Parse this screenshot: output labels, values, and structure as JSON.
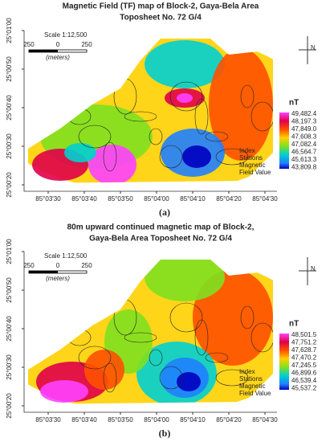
{
  "panels": [
    {
      "title_lines": [
        "Magnetic Field (TF) map of Block-2, Gaya-Bela Area",
        "Toposheet No. 72 G/4"
      ],
      "scale": "Scale 1:12,500",
      "scale_ticks": [
        "250",
        "0",
        "250"
      ],
      "scale_unit": "(meters)",
      "north": "N",
      "y_labels": [
        "25°01'00",
        "25°00'50",
        "25°00'40",
        "25°00'30",
        "25°00'20"
      ],
      "x_labels": [
        "85°03'30",
        "85°03'40",
        "85°03'50",
        "85°04'00",
        "85°04'10",
        "85°04'20",
        "85°04'30"
      ],
      "legend_unit": "nT",
      "legend_values": [
        "49,482.4",
        "48,197.3",
        "47,849.0",
        "47,608.3",
        "47,082.4",
        "46,564.7",
        "45,613.3",
        "43,809.8"
      ],
      "index_lines": [
        "Index",
        "Stations",
        "Magnetic",
        "Field Value"
      ],
      "caption": "(a)"
    },
    {
      "title_lines": [
        "80m upward continued magnetic map of Block-2,",
        "Gaya-Bela Area  Toposheet No. 72 G/4"
      ],
      "scale": "Scale 1:12,500",
      "scale_ticks": [
        "250",
        "0",
        "250"
      ],
      "scale_unit": "(meters)",
      "north": "N",
      "y_labels": [
        "25°01'00",
        "25°00'50",
        "25°00'40",
        "25°00'30",
        "25°00'20"
      ],
      "x_labels": [
        "85°03'30",
        "85°03'40",
        "85°03'50",
        "85°04'00",
        "85°04'10",
        "85°04'20",
        "85°04'30"
      ],
      "legend_unit": "nT",
      "legend_values": [
        "48,501.5",
        "47,751.2",
        "47,628.7",
        "47,470.2",
        "47,245.5",
        "46,899.6",
        "46,539.4",
        "45,537.2"
      ],
      "index_lines": [
        "Index",
        "Stations",
        "Magnetic",
        "Field Value"
      ],
      "caption": "(b)"
    }
  ]
}
